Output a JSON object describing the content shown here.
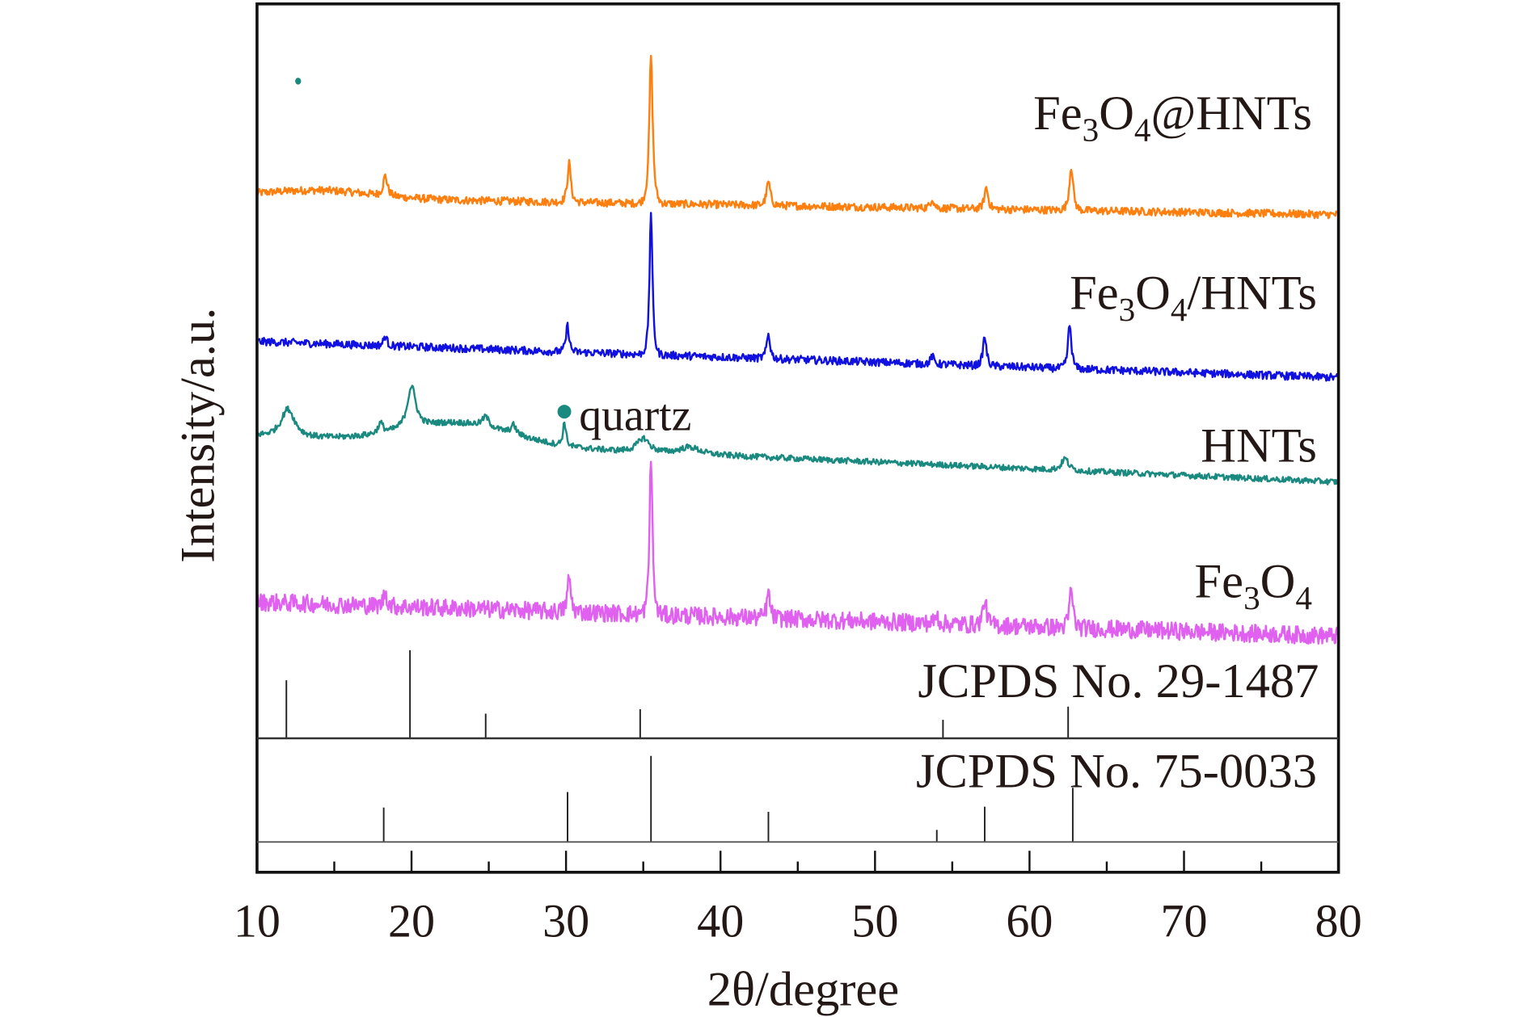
{
  "chart_data": {
    "type": "line",
    "title": "",
    "xlabel": "2θ/degree",
    "ylabel": "Intensity/a.u.",
    "xlim": [
      10,
      80
    ],
    "ylim": [
      0,
      890
    ],
    "xticks": [
      10,
      20,
      30,
      40,
      50,
      60,
      70,
      80
    ],
    "xticks_minor": [
      15,
      25,
      35,
      45,
      55,
      65,
      75
    ],
    "grid": false,
    "series": [
      {
        "name": "Fe3O4@HNTs",
        "label_main": "Fe",
        "label_sub1": "3",
        "label_mid": "O",
        "label_sub2": "4",
        "label_tail": "@HNTs",
        "color": "#ff7f0e",
        "baseline": [
          692,
          674
        ],
        "hump": {
          "center": 14,
          "height": 8,
          "width": 5
        },
        "noise": 4,
        "peaks": [
          {
            "two_theta": 18.3,
            "height": 20,
            "width": 0.25
          },
          {
            "two_theta": 30.2,
            "height": 40,
            "width": 0.2
          },
          {
            "two_theta": 35.5,
            "height": 152,
            "width": 0.2
          },
          {
            "two_theta": 43.1,
            "height": 24,
            "width": 0.22
          },
          {
            "two_theta": 53.7,
            "height": 10,
            "width": 0.2
          },
          {
            "two_theta": 57.2,
            "height": 22,
            "width": 0.22
          },
          {
            "two_theta": 62.7,
            "height": 45,
            "width": 0.22
          }
        ]
      },
      {
        "name": "Fe3O4/HNTs",
        "label_main": "Fe",
        "label_sub1": "3",
        "label_mid": "O",
        "label_sub2": "4",
        "label_tail": "/HNTs",
        "color": "#1010e0",
        "baseline": [
          544,
          507
        ],
        "hump": {
          "center": 14,
          "height": 0,
          "width": 5
        },
        "noise": 4,
        "peaks": [
          {
            "two_theta": 18.3,
            "height": 10,
            "width": 0.2
          },
          {
            "two_theta": 30.1,
            "height": 27,
            "width": 0.18
          },
          {
            "two_theta": 35.5,
            "height": 148,
            "width": 0.17
          },
          {
            "two_theta": 43.1,
            "height": 25,
            "width": 0.2
          },
          {
            "two_theta": 53.7,
            "height": 8,
            "width": 0.2
          },
          {
            "two_theta": 57.1,
            "height": 30,
            "width": 0.2
          },
          {
            "two_theta": 62.6,
            "height": 45,
            "width": 0.2
          }
        ]
      },
      {
        "name": "HNTs",
        "label_main": "HNTs",
        "label_sub1": "",
        "label_mid": "",
        "label_sub2": "",
        "label_tail": "",
        "color": "#1a8a80",
        "baseline": [
          448,
          400
        ],
        "hump": {
          "center": 23,
          "height": 22,
          "width": 5
        },
        "noise": 3,
        "peaks": [
          {
            "two_theta": 12.0,
            "height": 28,
            "width": 0.8
          },
          {
            "two_theta": 18.0,
            "height": 10,
            "width": 0.3
          },
          {
            "two_theta": 20.0,
            "height": 42,
            "width": 0.5
          },
          {
            "two_theta": 24.8,
            "height": 10,
            "width": 0.4
          },
          {
            "two_theta": 26.6,
            "height": 9,
            "width": 0.3
          },
          {
            "two_theta": 29.9,
            "height": 24,
            "width": 0.18
          },
          {
            "two_theta": 35.0,
            "height": 14,
            "width": 0.7
          },
          {
            "two_theta": 38.0,
            "height": 7,
            "width": 1.2
          },
          {
            "two_theta": 62.3,
            "height": 12,
            "width": 0.4
          }
        ]
      },
      {
        "name": "Fe3O4",
        "label_main": "Fe",
        "label_sub1": "3",
        "label_mid": "O",
        "label_sub2": "4",
        "label_tail": "",
        "color": "#e060f0",
        "baseline": [
          277,
          242
        ],
        "hump": {
          "center": 14,
          "height": 0,
          "width": 5
        },
        "noise": 9,
        "peaks": [
          {
            "two_theta": 18.3,
            "height": 15,
            "width": 0.2
          },
          {
            "two_theta": 30.2,
            "height": 35,
            "width": 0.2
          },
          {
            "two_theta": 35.5,
            "height": 165,
            "width": 0.17
          },
          {
            "two_theta": 43.1,
            "height": 25,
            "width": 0.2
          },
          {
            "two_theta": 54.0,
            "height": 8,
            "width": 0.2
          },
          {
            "two_theta": 57.1,
            "height": 25,
            "width": 0.22
          },
          {
            "two_theta": 62.7,
            "height": 40,
            "width": 0.2
          }
        ]
      }
    ],
    "reference_patterns": [
      {
        "name": "JCPDS No. 29-1487",
        "lines": [
          {
            "two_theta": 11.9,
            "relative_intensity": 66
          },
          {
            "two_theta": 19.9,
            "relative_intensity": 100
          },
          {
            "two_theta": 24.8,
            "relative_intensity": 28
          },
          {
            "two_theta": 34.8,
            "relative_intensity": 33
          },
          {
            "two_theta": 54.4,
            "relative_intensity": 21
          },
          {
            "two_theta": 62.5,
            "relative_intensity": 36
          }
        ]
      },
      {
        "name": "JCPDS No. 75-0033",
        "lines": [
          {
            "two_theta": 18.2,
            "relative_intensity": 40
          },
          {
            "two_theta": 30.1,
            "relative_intensity": 58
          },
          {
            "two_theta": 35.5,
            "relative_intensity": 100
          },
          {
            "two_theta": 43.1,
            "relative_intensity": 35
          },
          {
            "two_theta": 54.0,
            "relative_intensity": 14
          },
          {
            "two_theta": 57.1,
            "relative_intensity": 41
          },
          {
            "two_theta": 62.8,
            "relative_intensity": 63
          }
        ]
      }
    ],
    "annotations": [
      {
        "text": "quartz",
        "marker": "dot",
        "two_theta": 29.9,
        "color": "#1a8a80"
      }
    ]
  }
}
